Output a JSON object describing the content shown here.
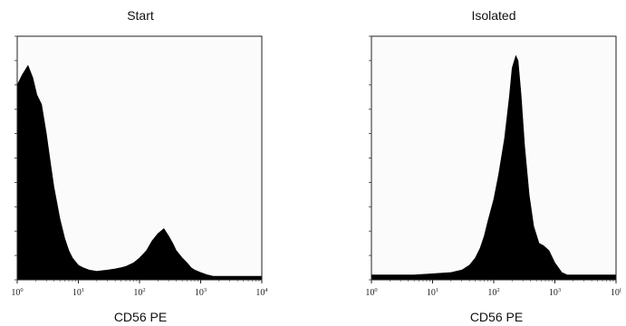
{
  "chart_data": [
    {
      "type": "area",
      "title": "Start",
      "xlabel": "CD56 PE",
      "ylabel": "",
      "x_scale": "log",
      "xlim": [
        1,
        10000
      ],
      "ylim": [
        0,
        1
      ],
      "grid": false,
      "x_ticks": [
        {
          "base": "10",
          "exp": "0"
        },
        {
          "base": "10",
          "exp": "1"
        },
        {
          "base": "10",
          "exp": "2"
        },
        {
          "base": "10",
          "exp": "3"
        },
        {
          "base": "10",
          "exp": "4"
        }
      ],
      "fill_color": "#000000",
      "series": [
        {
          "x": [
            1,
            1.2,
            1.5,
            1.8,
            2.1,
            2.5,
            3,
            3.5,
            4,
            5,
            6,
            7,
            8,
            10,
            12,
            15,
            20,
            30,
            40,
            50,
            60,
            80,
            100,
            130,
            160,
            200,
            250,
            300,
            350,
            400,
            500,
            600,
            700,
            800,
            1000,
            1300,
            1600,
            2000,
            3000,
            5000,
            7000,
            10000
          ],
          "values": [
            0.8,
            0.84,
            0.88,
            0.83,
            0.76,
            0.72,
            0.6,
            0.48,
            0.38,
            0.25,
            0.17,
            0.12,
            0.09,
            0.06,
            0.05,
            0.04,
            0.035,
            0.04,
            0.045,
            0.05,
            0.055,
            0.07,
            0.09,
            0.12,
            0.16,
            0.19,
            0.21,
            0.18,
            0.15,
            0.12,
            0.09,
            0.07,
            0.05,
            0.04,
            0.03,
            0.02,
            0.015,
            0.015,
            0.015,
            0.015,
            0.015,
            0.015
          ]
        }
      ]
    },
    {
      "type": "area",
      "title": "Isolated",
      "xlabel": "CD56 PE",
      "ylabel": "",
      "x_scale": "log",
      "xlim": [
        1,
        10000
      ],
      "ylim": [
        0,
        1
      ],
      "grid": false,
      "x_ticks": [
        {
          "base": "10",
          "exp": "0"
        },
        {
          "base": "10",
          "exp": "1"
        },
        {
          "base": "10",
          "exp": "2"
        },
        {
          "base": "10",
          "exp": "3"
        },
        {
          "base": "10",
          "exp": "("
        }
      ],
      "fill_color": "#000000",
      "series": [
        {
          "x": [
            1,
            2,
            5,
            10,
            20,
            30,
            40,
            50,
            60,
            70,
            80,
            100,
            120,
            150,
            180,
            200,
            230,
            250,
            280,
            320,
            380,
            450,
            550,
            650,
            800,
            1000,
            1300,
            1600,
            2000,
            3000,
            5000,
            10000
          ],
          "values": [
            0.02,
            0.02,
            0.02,
            0.025,
            0.03,
            0.04,
            0.06,
            0.09,
            0.13,
            0.18,
            0.24,
            0.33,
            0.43,
            0.58,
            0.75,
            0.87,
            0.92,
            0.9,
            0.76,
            0.55,
            0.35,
            0.22,
            0.15,
            0.14,
            0.12,
            0.07,
            0.03,
            0.02,
            0.02,
            0.02,
            0.02,
            0.02
          ]
        }
      ]
    }
  ]
}
